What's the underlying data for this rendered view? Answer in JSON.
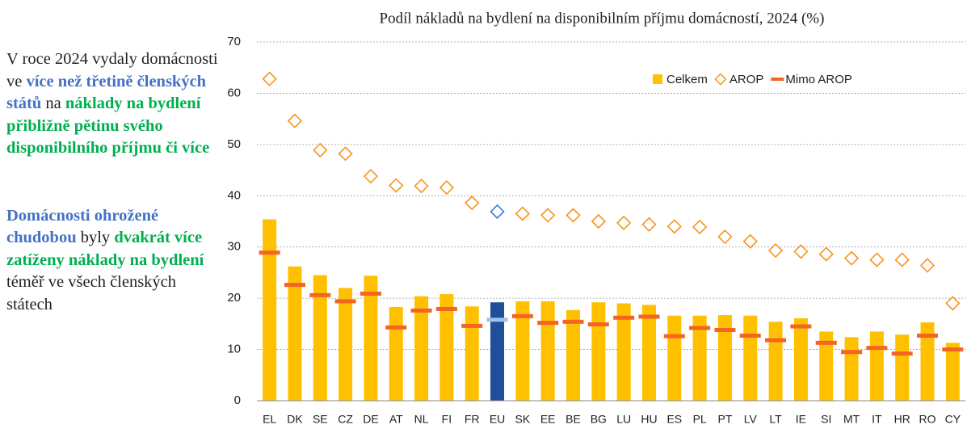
{
  "sidebar": {
    "paragraphs": [
      [
        {
          "text": "V roce 2024 vydaly domácnosti ve ",
          "style": "plain"
        },
        {
          "text": "více než třetině členských států",
          "style": "blue"
        },
        {
          "text": " na ",
          "style": "plain"
        },
        {
          "text": "náklady na bydlení přibližně pětinu svého disponibilního příjmu či více",
          "style": "green"
        }
      ],
      [
        {
          "text": "Domácnosti ohrožené chudobou",
          "style": "blue"
        },
        {
          "text": " byly ",
          "style": "plain"
        },
        {
          "text": "dvakrát více zatíženy náklady na bydlení",
          "style": "green"
        },
        {
          "text": " téměř ve všech členských státech",
          "style": "plain"
        }
      ]
    ]
  },
  "chart_data": {
    "type": "bar",
    "title": "Podíl nákladů na bydlení na disponibilním příjmu domácností, 2024 (%)",
    "categories": [
      "EL",
      "DK",
      "SE",
      "CZ",
      "DE",
      "AT",
      "NL",
      "FI",
      "FR",
      "EU",
      "SK",
      "EE",
      "BE",
      "BG",
      "LU",
      "HU",
      "ES",
      "PL",
      "PT",
      "LV",
      "LT",
      "IE",
      "SI",
      "MT",
      "IT",
      "HR",
      "RO",
      "CY"
    ],
    "highlight": "EU",
    "series": [
      {
        "name": "Celkem",
        "mark": "bar",
        "color": "#ffc000",
        "highlight_color": "#1f4e9a",
        "values": [
          35.4,
          26.2,
          24.5,
          22.0,
          24.4,
          18.3,
          20.4,
          20.8,
          18.4,
          19.2,
          19.4,
          19.4,
          17.7,
          19.2,
          19.0,
          18.7,
          16.6,
          16.6,
          16.7,
          16.6,
          15.4,
          16.1,
          13.5,
          12.4,
          13.5,
          12.9,
          15.3,
          11.3
        ]
      },
      {
        "name": "AROP",
        "mark": "diamond",
        "color": "#f7941d",
        "highlight_color": "#3b7dd8",
        "values": [
          62.8,
          54.6,
          48.9,
          48.2,
          43.8,
          42.0,
          41.9,
          41.6,
          38.6,
          36.9,
          36.5,
          36.2,
          36.2,
          35.0,
          34.7,
          34.4,
          34.0,
          33.9,
          32.0,
          31.1,
          29.3,
          29.1,
          28.6,
          27.8,
          27.5,
          27.5,
          26.4,
          19.0
        ]
      },
      {
        "name": "Mimo AROP",
        "mark": "dash",
        "color": "#f26522",
        "highlight_color": "#9dc3e6",
        "values": [
          28.9,
          22.6,
          20.6,
          19.4,
          20.9,
          14.3,
          17.6,
          17.9,
          14.6,
          15.8,
          16.5,
          15.2,
          15.4,
          14.9,
          16.2,
          16.4,
          12.6,
          14.2,
          13.8,
          12.7,
          11.8,
          14.5,
          11.3,
          9.5,
          10.3,
          9.2,
          12.7,
          10.0
        ]
      }
    ],
    "ylim": [
      0,
      70
    ],
    "yticks": [
      0,
      10,
      20,
      30,
      40,
      50,
      60,
      70
    ],
    "grid": true,
    "legend": "top-right"
  }
}
